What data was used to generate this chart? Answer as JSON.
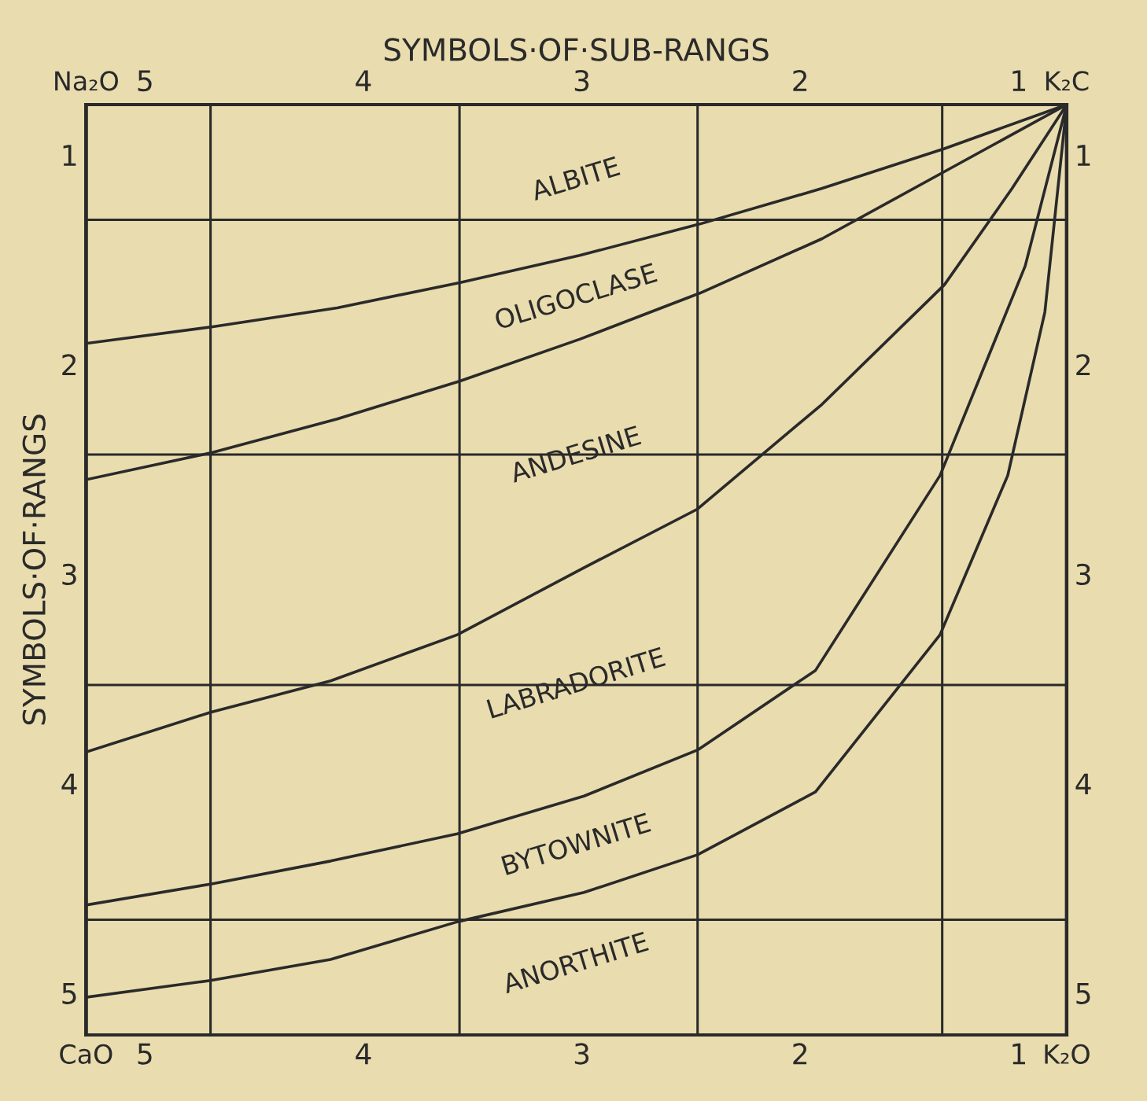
{
  "chart_data": {
    "type": "line",
    "x2label": "SYMBOLS·OF·SUB-RANGS",
    "ylabel": "SYMBOLS·OF·RANGS",
    "xlim": [
      5.27,
      0.78
    ],
    "ylim": [
      5.2,
      0.76
    ],
    "x2lim": [
      5.27,
      0.78
    ],
    "y2lim": [
      5.2,
      0.76
    ],
    "xticks": [
      5,
      4,
      3,
      2,
      1
    ],
    "x2ticks": [
      5,
      4,
      3,
      2,
      1
    ],
    "yticks": [
      1,
      2,
      3,
      4,
      5
    ],
    "y2ticks": [
      1,
      2,
      3,
      4,
      5
    ],
    "series": [
      {
        "color": "#2a2a2a",
        "x": [
          5.27,
          4.69,
          4.12,
          3.56,
          3.01,
          2.46,
          1.9,
          1.34,
          0.78
        ],
        "values": [
          1.9,
          1.82,
          1.73,
          1.61,
          1.48,
          1.33,
          1.16,
          0.97,
          0.76
        ]
      },
      {
        "color": "#2a2a2a",
        "x": [
          5.27,
          4.69,
          4.12,
          3.56,
          3.01,
          2.46,
          1.9,
          1.34,
          0.78
        ],
        "values": [
          2.55,
          2.42,
          2.26,
          2.08,
          1.88,
          1.66,
          1.4,
          1.08,
          0.76
        ]
      },
      {
        "color": "#2a2a2a",
        "x": [
          5.27,
          4.7,
          4.15,
          3.57,
          2.99,
          2.47,
          1.9,
          1.34,
          1.03,
          0.78
        ],
        "values": [
          3.85,
          3.66,
          3.51,
          3.29,
          2.97,
          2.69,
          2.19,
          1.62,
          1.16,
          0.76
        ]
      },
      {
        "color": "#2a2a2a",
        "x": [
          5.27,
          4.7,
          4.15,
          3.57,
          2.99,
          2.47,
          1.93,
          1.36,
          0.97,
          0.78
        ],
        "values": [
          4.58,
          4.48,
          4.37,
          4.24,
          4.06,
          3.84,
          3.46,
          2.53,
          1.53,
          0.76
        ]
      },
      {
        "color": "#2a2a2a",
        "x": [
          5.27,
          4.7,
          4.15,
          3.57,
          2.99,
          2.47,
          1.93,
          1.36,
          1.05,
          0.88,
          0.78
        ],
        "values": [
          5.02,
          4.94,
          4.84,
          4.66,
          4.52,
          4.34,
          4.04,
          3.29,
          2.53,
          1.75,
          0.76
        ]
      }
    ],
    "ref_lines": [
      {
        "axis": "x",
        "value": 4.7,
        "color": "#2a2a2a"
      },
      {
        "axis": "x",
        "value": 3.56,
        "color": "#2a2a2a"
      },
      {
        "axis": "x",
        "value": 2.47,
        "color": "#2a2a2a"
      },
      {
        "axis": "x",
        "value": 1.35,
        "color": "#2a2a2a"
      },
      {
        "axis": "y",
        "value": 1.31,
        "color": "#2a2a2a"
      },
      {
        "axis": "y",
        "value": 2.43,
        "color": "#2a2a2a"
      },
      {
        "axis": "y",
        "value": 3.53,
        "color": "#2a2a2a"
      },
      {
        "axis": "y",
        "value": 4.65,
        "color": "#2a2a2a"
      }
    ],
    "annotations": [
      "ALBITE",
      "OLIGOCLASE",
      "ANDESINE",
      "LABRADORITE",
      "BYTOWNITE",
      "ANORTHITE",
      "Na₂O",
      "K₂C",
      "CaO",
      "K₂O"
    ],
    "marker": "none",
    "line_style": "solid",
    "grid": false,
    "legend": false
  }
}
